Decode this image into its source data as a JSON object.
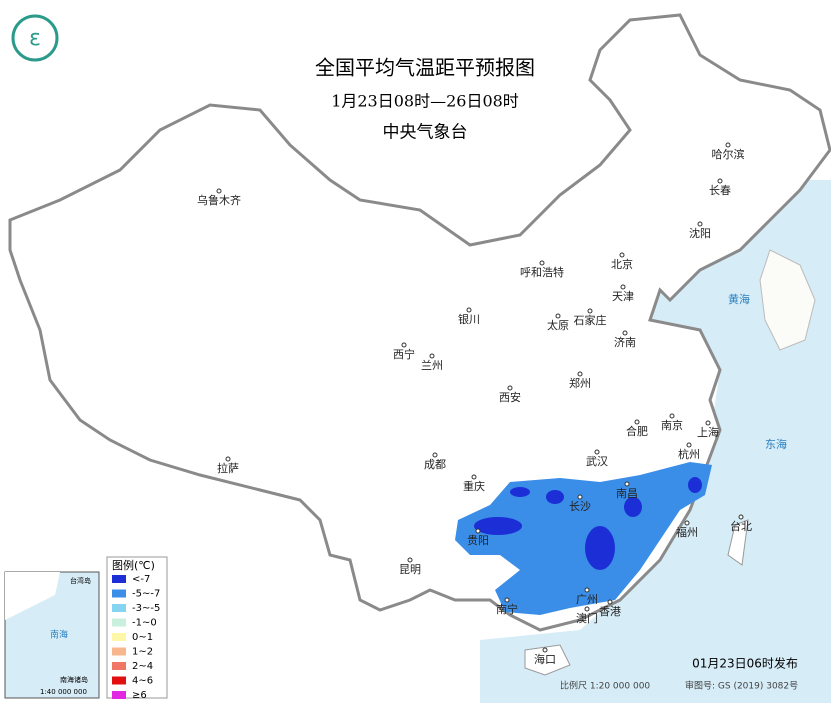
{
  "header": {
    "title": "全国平均气温距平预报图",
    "subtitle": "1月23日08时—26日08时",
    "issuer": "中央气象台"
  },
  "cities": [
    "乌鲁木齐",
    "哈尔滨",
    "长春",
    "沈阳",
    "呼和浩特",
    "北京",
    "天津",
    "银川",
    "太原",
    "石家庄",
    "济南",
    "西宁",
    "兰州",
    "郑州",
    "西安",
    "合肥",
    "南京",
    "上海",
    "成都",
    "武汉",
    "杭州",
    "拉萨",
    "重庆",
    "长沙",
    "南昌",
    "贵阳",
    "福州",
    "台北",
    "昆明",
    "南宁",
    "广州",
    "香港",
    "澳门",
    "海口"
  ],
  "seas": [
    "黄海",
    "东海"
  ],
  "legend": {
    "title": "图例(℃)",
    "items": [
      {
        "label": "<-7",
        "color": "#1c2fd6"
      },
      {
        "label": "-5~-7",
        "color": "#3b8ee8"
      },
      {
        "label": "-3~-5",
        "color": "#86d3f2"
      },
      {
        "label": "-1~0",
        "color": "#c8f0dc"
      },
      {
        "label": "0~1",
        "color": "#fff7a8"
      },
      {
        "label": "1~2",
        "color": "#f7b68c"
      },
      {
        "label": "2~4",
        "color": "#f07763"
      },
      {
        "label": "4~6",
        "color": "#e20f0f"
      },
      {
        "label": "≥6",
        "color": "#e227e2"
      }
    ]
  },
  "inset": {
    "labels": [
      "南海",
      "台湾岛",
      "南海诸岛",
      "1:40 000 000"
    ]
  },
  "footer": {
    "issued": "01月23日06时发布",
    "scale": "比例尺 1:20 000 000",
    "approval": "审图号: GS (2019) 3082号"
  }
}
